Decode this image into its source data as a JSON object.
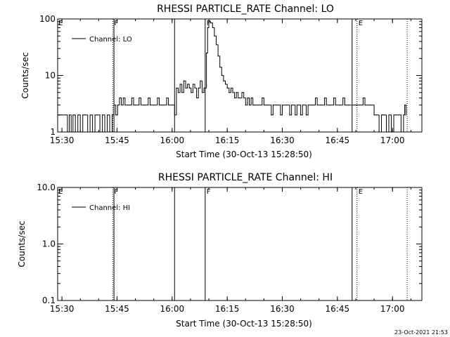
{
  "chart_data": [
    {
      "type": "line",
      "title": "RHESSI PARTICLE_RATE Channel: LO",
      "xlabel": "Start Time (30-Oct-13 15:28:50)",
      "ylabel": "Counts/sec",
      "y_scale": "log",
      "ylim": [
        1,
        100
      ],
      "xlim": [
        "15:28:50",
        "17:08:00"
      ],
      "x_ticks": [
        "15:30",
        "15:45",
        "16:00",
        "16:15",
        "16:30",
        "16:45",
        "17:00"
      ],
      "y_ticks": [
        "1",
        "10",
        "100"
      ],
      "legend": {
        "position": "top-left",
        "entries": [
          "Channel: LO"
        ]
      },
      "markers": [
        {
          "time": "15:43:50",
          "label": "F",
          "style": "dotted"
        },
        {
          "time": "15:44:10",
          "label": "",
          "style": "solid"
        },
        {
          "time": "16:00:40",
          "label": "",
          "style": "solid"
        },
        {
          "time": "16:09:00",
          "label": "F",
          "style": "solid"
        },
        {
          "time": "16:49:00",
          "label": "",
          "style": "solid"
        },
        {
          "time": "16:50:20",
          "label": "E",
          "style": "dotted"
        },
        {
          "time": "17:04:00",
          "label": "",
          "style": "dotted"
        }
      ],
      "edge_labels": [
        "E"
      ],
      "series": [
        {
          "name": "Channel: LO",
          "points": [
            [
              "15:28:50",
              2
            ],
            [
              "15:30:00",
              2
            ],
            [
              "15:31:00",
              2
            ],
            [
              "15:31:30",
              1
            ],
            [
              "15:32:00",
              2
            ],
            [
              "15:32:30",
              1
            ],
            [
              "15:33:00",
              2
            ],
            [
              "15:33:40",
              1
            ],
            [
              "15:34:20",
              2
            ],
            [
              "15:35:00",
              1
            ],
            [
              "15:35:40",
              2
            ],
            [
              "15:36:20",
              2
            ],
            [
              "15:37:00",
              1
            ],
            [
              "15:37:40",
              2
            ],
            [
              "15:38:20",
              1
            ],
            [
              "15:39:00",
              2
            ],
            [
              "15:39:40",
              2
            ],
            [
              "15:40:20",
              1
            ],
            [
              "15:41:00",
              2
            ],
            [
              "15:41:40",
              1
            ],
            [
              "15:42:20",
              2
            ],
            [
              "15:43:00",
              1
            ],
            [
              "15:43:40",
              2
            ],
            [
              "15:44:10",
              3
            ],
            [
              "15:44:40",
              2
            ],
            [
              "15:45:10",
              3
            ],
            [
              "15:45:40",
              4
            ],
            [
              "15:46:10",
              3
            ],
            [
              "15:46:40",
              4
            ],
            [
              "15:47:10",
              3
            ],
            [
              "15:48:00",
              3
            ],
            [
              "15:49:00",
              4
            ],
            [
              "15:49:30",
              3
            ],
            [
              "15:50:00",
              3
            ],
            [
              "15:51:00",
              4
            ],
            [
              "15:51:30",
              3
            ],
            [
              "15:52:30",
              3
            ],
            [
              "15:53:30",
              4
            ],
            [
              "15:54:00",
              3
            ],
            [
              "15:55:00",
              3
            ],
            [
              "15:56:00",
              4
            ],
            [
              "15:56:30",
              3
            ],
            [
              "15:57:30",
              3
            ],
            [
              "15:58:30",
              4
            ],
            [
              "15:59:00",
              3
            ],
            [
              "16:00:00",
              3
            ],
            [
              "16:00:40",
              2
            ],
            [
              "16:01:10",
              6
            ],
            [
              "16:01:40",
              5
            ],
            [
              "16:02:10",
              7
            ],
            [
              "16:02:40",
              5
            ],
            [
              "16:03:10",
              8
            ],
            [
              "16:03:40",
              6
            ],
            [
              "16:04:10",
              7
            ],
            [
              "16:04:40",
              6
            ],
            [
              "16:05:10",
              5
            ],
            [
              "16:05:40",
              7
            ],
            [
              "16:06:10",
              6
            ],
            [
              "16:06:40",
              4
            ],
            [
              "16:07:10",
              6
            ],
            [
              "16:07:40",
              8
            ],
            [
              "16:08:10",
              5
            ],
            [
              "16:08:40",
              6
            ],
            [
              "16:09:00",
              6
            ],
            [
              "16:09:20",
              25
            ],
            [
              "16:09:40",
              70
            ],
            [
              "16:10:00",
              90
            ],
            [
              "16:10:30",
              85
            ],
            [
              "16:11:00",
              70
            ],
            [
              "16:11:30",
              50
            ],
            [
              "16:12:00",
              35
            ],
            [
              "16:12:30",
              22
            ],
            [
              "16:13:00",
              14
            ],
            [
              "16:13:30",
              10
            ],
            [
              "16:14:00",
              8
            ],
            [
              "16:14:30",
              7
            ],
            [
              "16:15:00",
              6
            ],
            [
              "16:15:30",
              5
            ],
            [
              "16:16:00",
              6
            ],
            [
              "16:16:30",
              5
            ],
            [
              "16:17:00",
              4
            ],
            [
              "16:17:30",
              5
            ],
            [
              "16:18:00",
              4
            ],
            [
              "16:18:30",
              4
            ],
            [
              "16:19:00",
              5
            ],
            [
              "16:19:30",
              4
            ],
            [
              "16:20:00",
              3
            ],
            [
              "16:20:30",
              4
            ],
            [
              "16:21:00",
              3
            ],
            [
              "16:21:30",
              4
            ],
            [
              "16:22:00",
              3
            ],
            [
              "16:22:30",
              3
            ],
            [
              "16:23:30",
              3
            ],
            [
              "16:24:30",
              4
            ],
            [
              "16:25:00",
              3
            ],
            [
              "16:26:00",
              3
            ],
            [
              "16:27:00",
              2
            ],
            [
              "16:27:30",
              3
            ],
            [
              "16:28:30",
              3
            ],
            [
              "16:29:30",
              2
            ],
            [
              "16:30:00",
              3
            ],
            [
              "16:31:00",
              3
            ],
            [
              "16:32:00",
              2
            ],
            [
              "16:32:30",
              3
            ],
            [
              "16:33:30",
              2
            ],
            [
              "16:34:00",
              3
            ],
            [
              "16:35:00",
              2
            ],
            [
              "16:35:30",
              3
            ],
            [
              "16:36:30",
              2
            ],
            [
              "16:37:00",
              3
            ],
            [
              "16:38:00",
              3
            ],
            [
              "16:39:00",
              4
            ],
            [
              "16:39:30",
              3
            ],
            [
              "16:40:30",
              3
            ],
            [
              "16:41:30",
              4
            ],
            [
              "16:42:00",
              3
            ],
            [
              "16:43:00",
              3
            ],
            [
              "16:44:00",
              4
            ],
            [
              "16:44:30",
              3
            ],
            [
              "16:45:30",
              3
            ],
            [
              "16:46:30",
              4
            ],
            [
              "16:47:00",
              3
            ],
            [
              "16:48:00",
              3
            ],
            [
              "16:49:00",
              3
            ],
            [
              "16:50:00",
              3
            ],
            [
              "16:51:00",
              3
            ],
            [
              "16:52:00",
              4
            ],
            [
              "16:52:30",
              3
            ],
            [
              "16:54:00",
              3
            ],
            [
              "16:55:00",
              2
            ],
            [
              "16:55:40",
              2
            ],
            [
              "16:56:20",
              1
            ],
            [
              "16:57:00",
              2
            ],
            [
              "16:57:40",
              2
            ],
            [
              "16:58:20",
              1
            ],
            [
              "16:59:00",
              2
            ],
            [
              "16:59:40",
              1
            ],
            [
              "17:00:20",
              2
            ],
            [
              "17:01:00",
              2
            ],
            [
              "17:01:40",
              2
            ],
            [
              "17:02:20",
              1
            ],
            [
              "17:03:00",
              2
            ],
            [
              "17:03:20",
              3
            ],
            [
              "17:03:40",
              2
            ]
          ]
        }
      ]
    },
    {
      "type": "line",
      "title": "RHESSI PARTICLE_RATE Channel: HI",
      "xlabel": "Start Time (30-Oct-13 15:28:50)",
      "ylabel": "Counts/sec",
      "y_scale": "log",
      "ylim": [
        0.1,
        10
      ],
      "xlim": [
        "15:28:50",
        "17:08:00"
      ],
      "x_ticks": [
        "15:30",
        "15:45",
        "16:00",
        "16:15",
        "16:30",
        "16:45",
        "17:00"
      ],
      "y_ticks": [
        "0.1",
        "1.0",
        "10.0"
      ],
      "legend": {
        "position": "top-left",
        "entries": [
          "Channel: HI"
        ]
      },
      "markers": [
        {
          "time": "15:43:50",
          "label": "F",
          "style": "dotted"
        },
        {
          "time": "15:44:10",
          "label": "",
          "style": "solid"
        },
        {
          "time": "16:00:40",
          "label": "",
          "style": "solid"
        },
        {
          "time": "16:09:00",
          "label": "F",
          "style": "solid"
        },
        {
          "time": "16:49:00",
          "label": "",
          "style": "solid"
        },
        {
          "time": "16:50:20",
          "label": "E",
          "style": "dotted"
        },
        {
          "time": "17:04:00",
          "label": "",
          "style": "dotted"
        }
      ],
      "edge_labels": [
        "E"
      ],
      "series": [
        {
          "name": "Channel: HI",
          "points": []
        }
      ]
    }
  ],
  "footer": {
    "timestamp": "23-Oct-2021 21:53"
  }
}
